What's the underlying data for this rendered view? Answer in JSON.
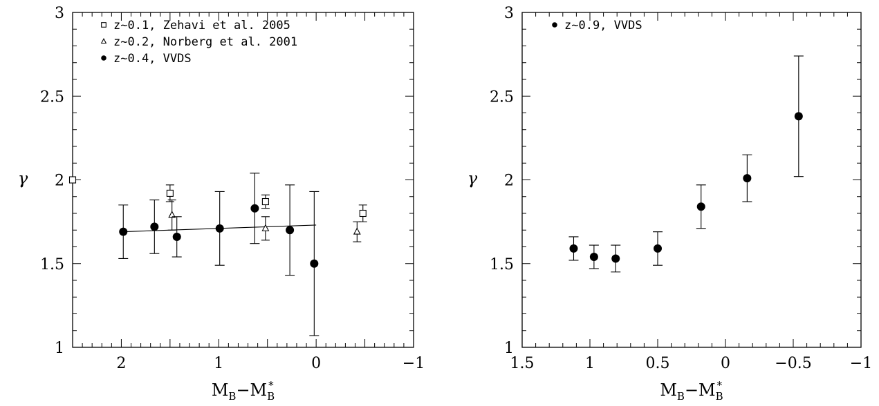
{
  "chart_data": [
    {
      "type": "scatter",
      "title": "",
      "xlabel": "M_B−M_B^*",
      "ylabel": "γ",
      "xlim": [
        2.5,
        -1
      ],
      "ylim": [
        1,
        3
      ],
      "x_inverted": true,
      "x_ticks": [
        {
          "value": 2,
          "label": "2"
        },
        {
          "value": 1,
          "label": "1"
        },
        {
          "value": 0,
          "label": "0"
        },
        {
          "value": -1,
          "label": "−1"
        }
      ],
      "y_ticks": [
        {
          "value": 1,
          "label": "1"
        },
        {
          "value": 1.5,
          "label": "1.5"
        },
        {
          "value": 2,
          "label": "2"
        },
        {
          "value": 2.5,
          "label": "2.5"
        },
        {
          "value": 3,
          "label": "3"
        }
      ],
      "legend_placement": "top-left",
      "series": [
        {
          "name": "z~0.1, Zehavi et al. 2005",
          "marker": "square-open",
          "points": [
            {
              "x": 2.5,
              "y": 2.0,
              "err": 0.0
            },
            {
              "x": 1.5,
              "y": 1.92,
              "err": 0.05
            },
            {
              "x": 0.52,
              "y": 1.87,
              "err": 0.04
            },
            {
              "x": -0.48,
              "y": 1.8,
              "err": 0.05
            }
          ]
        },
        {
          "name": "z~0.2, Norberg et al. 2001",
          "marker": "triangle-open",
          "points": [
            {
              "x": 1.48,
              "y": 1.79,
              "err": 0.09
            },
            {
              "x": 0.52,
              "y": 1.71,
              "err": 0.07
            },
            {
              "x": -0.42,
              "y": 1.69,
              "err": 0.06
            }
          ]
        },
        {
          "name": "z~0.4, VVDS",
          "marker": "circle-filled",
          "points": [
            {
              "x": 1.98,
              "y": 1.69,
              "err": 0.16
            },
            {
              "x": 1.66,
              "y": 1.72,
              "err": 0.16
            },
            {
              "x": 1.43,
              "y": 1.66,
              "err": 0.12
            },
            {
              "x": 0.99,
              "y": 1.71,
              "err": 0.22
            },
            {
              "x": 0.63,
              "y": 1.83,
              "err": 0.21
            },
            {
              "x": 0.27,
              "y": 1.7,
              "err": 0.27
            },
            {
              "x": 0.02,
              "y": 1.5,
              "err": 0.43
            }
          ]
        }
      ],
      "fit_line": {
        "x": [
          2.0,
          0.0
        ],
        "y": [
          1.69,
          1.73
        ]
      }
    },
    {
      "type": "scatter",
      "title": "",
      "xlabel": "M_B−M_B^*",
      "ylabel": "γ",
      "xlim": [
        1.5,
        -1
      ],
      "ylim": [
        1,
        3
      ],
      "x_inverted": true,
      "x_ticks": [
        {
          "value": 1.5,
          "label": "1.5"
        },
        {
          "value": 1,
          "label": "1"
        },
        {
          "value": 0.5,
          "label": "0.5"
        },
        {
          "value": 0,
          "label": "0"
        },
        {
          "value": -0.5,
          "label": "−0.5"
        },
        {
          "value": -1,
          "label": "−1"
        }
      ],
      "y_ticks": [
        {
          "value": 1,
          "label": "1"
        },
        {
          "value": 1.5,
          "label": "1.5"
        },
        {
          "value": 2,
          "label": "2"
        },
        {
          "value": 2.5,
          "label": "2.5"
        },
        {
          "value": 3,
          "label": "3"
        }
      ],
      "legend_placement": "top-left",
      "series": [
        {
          "name": "z~0.9, VVDS",
          "marker": "circle-filled",
          "points": [
            {
              "x": 1.12,
              "y": 1.59,
              "err": 0.07
            },
            {
              "x": 0.97,
              "y": 1.54,
              "err": 0.07
            },
            {
              "x": 0.81,
              "y": 1.53,
              "err": 0.08
            },
            {
              "x": 0.5,
              "y": 1.59,
              "err": 0.1
            },
            {
              "x": 0.18,
              "y": 1.84,
              "err": 0.13
            },
            {
              "x": -0.16,
              "y": 2.01,
              "err": 0.14
            },
            {
              "x": -0.54,
              "y": 2.38,
              "err": 0.36
            }
          ]
        }
      ]
    }
  ]
}
